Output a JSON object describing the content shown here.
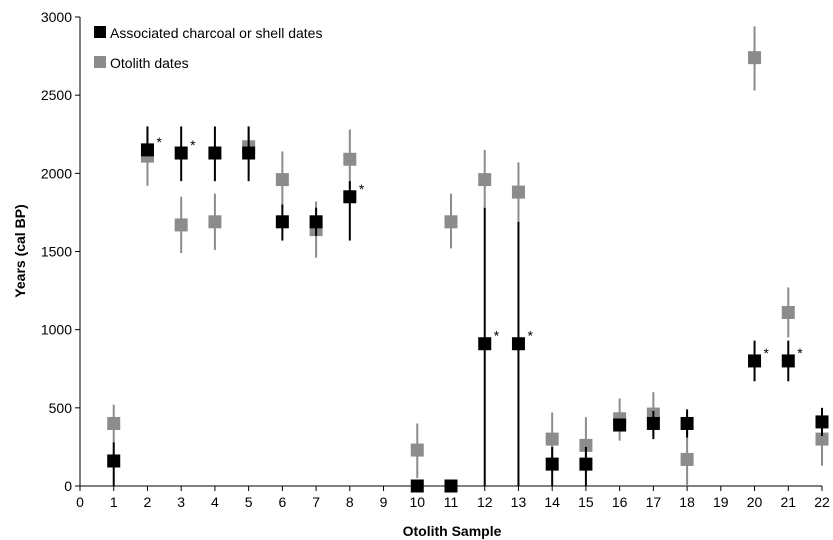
{
  "chart_data": {
    "type": "scatter",
    "title": "",
    "xlabel": "Otolith Sample",
    "ylabel": "Years (cal BP)",
    "xlim": [
      0,
      22
    ],
    "ylim": [
      0,
      3000
    ],
    "xticks": [
      0,
      1,
      2,
      3,
      4,
      5,
      6,
      7,
      8,
      9,
      10,
      11,
      12,
      13,
      14,
      15,
      16,
      17,
      18,
      19,
      20,
      21,
      22
    ],
    "yticks": [
      0,
      500,
      1000,
      1500,
      2000,
      2500,
      3000
    ],
    "grid": false,
    "legend_position": "top-left",
    "series": [
      {
        "name": "Associated charcoal or shell dates",
        "color": "#000000",
        "points": [
          {
            "x": 1,
            "y": 160,
            "low": 0,
            "high": 280,
            "star": false
          },
          {
            "x": 2,
            "y": 2150,
            "low": 2130,
            "high": 2300,
            "star": true
          },
          {
            "x": 3,
            "y": 2130,
            "low": 1950,
            "high": 2300,
            "star": true
          },
          {
            "x": 4,
            "y": 2130,
            "low": 1950,
            "high": 2300,
            "star": false
          },
          {
            "x": 5,
            "y": 2130,
            "low": 1950,
            "high": 2300,
            "star": false
          },
          {
            "x": 6,
            "y": 1690,
            "low": 1570,
            "high": 1800,
            "star": false
          },
          {
            "x": 7,
            "y": 1690,
            "low": 1600,
            "high": 1780,
            "star": false
          },
          {
            "x": 8,
            "y": 1850,
            "low": 1570,
            "high": 1950,
            "star": true
          },
          {
            "x": 10,
            "y": 0,
            "low": 0,
            "high": 0,
            "star": false
          },
          {
            "x": 11,
            "y": 0,
            "low": 0,
            "high": 0,
            "star": false
          },
          {
            "x": 12,
            "y": 910,
            "low": 0,
            "high": 1780,
            "star": true
          },
          {
            "x": 13,
            "y": 910,
            "low": 0,
            "high": 1690,
            "star": true
          },
          {
            "x": 14,
            "y": 140,
            "low": 0,
            "high": 250,
            "star": false
          },
          {
            "x": 15,
            "y": 140,
            "low": 0,
            "high": 250,
            "star": false
          },
          {
            "x": 16,
            "y": 390,
            "low": 350,
            "high": 430,
            "star": false
          },
          {
            "x": 17,
            "y": 400,
            "low": 300,
            "high": 480,
            "star": false
          },
          {
            "x": 18,
            "y": 400,
            "low": 310,
            "high": 490,
            "star": false
          },
          {
            "x": 20,
            "y": 800,
            "low": 670,
            "high": 930,
            "star": true
          },
          {
            "x": 21,
            "y": 800,
            "low": 670,
            "high": 930,
            "star": true
          },
          {
            "x": 22,
            "y": 410,
            "low": 320,
            "high": 500,
            "star": false
          }
        ]
      },
      {
        "name": "Otolith dates",
        "color": "#8c8c8c",
        "points": [
          {
            "x": 1,
            "y": 400,
            "low": 280,
            "high": 520
          },
          {
            "x": 2,
            "y": 2110,
            "low": 1920,
            "high": 2300
          },
          {
            "x": 3,
            "y": 1670,
            "low": 1490,
            "high": 1850
          },
          {
            "x": 4,
            "y": 1690,
            "low": 1510,
            "high": 1870
          },
          {
            "x": 5,
            "y": 2170,
            "low": 2110,
            "high": 2300
          },
          {
            "x": 6,
            "y": 1960,
            "low": 1780,
            "high": 2140
          },
          {
            "x": 7,
            "y": 1640,
            "low": 1460,
            "high": 1820
          },
          {
            "x": 8,
            "y": 2090,
            "low": 1910,
            "high": 2280
          },
          {
            "x": 10,
            "y": 230,
            "low": 50,
            "high": 400
          },
          {
            "x": 11,
            "y": 1690,
            "low": 1520,
            "high": 1870
          },
          {
            "x": 12,
            "y": 1960,
            "low": 1780,
            "high": 2150
          },
          {
            "x": 13,
            "y": 1880,
            "low": 1690,
            "high": 2070
          },
          {
            "x": 14,
            "y": 300,
            "low": 130,
            "high": 470
          },
          {
            "x": 15,
            "y": 260,
            "low": 90,
            "high": 440
          },
          {
            "x": 16,
            "y": 430,
            "low": 290,
            "high": 560
          },
          {
            "x": 17,
            "y": 460,
            "low": 320,
            "high": 600
          },
          {
            "x": 18,
            "y": 170,
            "low": 0,
            "high": 350
          },
          {
            "x": 20,
            "y": 2740,
            "low": 2530,
            "high": 2940
          },
          {
            "x": 21,
            "y": 1110,
            "low": 950,
            "high": 1270
          },
          {
            "x": 22,
            "y": 300,
            "low": 130,
            "high": 470
          }
        ]
      }
    ],
    "annotation_symbol": "*"
  }
}
